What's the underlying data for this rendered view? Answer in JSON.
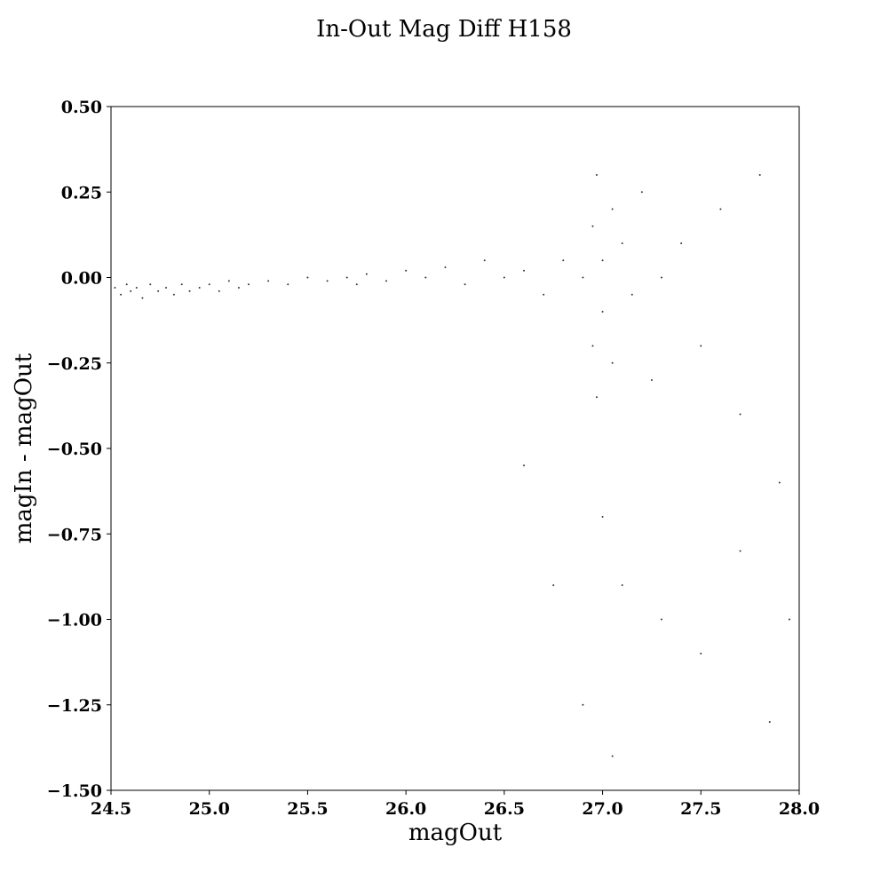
{
  "chart_data": {
    "type": "scatter",
    "title": "In-Out Mag Diff H158",
    "xlabel": "magOut",
    "ylabel": "magIn - magOut",
    "xlim": [
      24.5,
      28.0
    ],
    "ylim": [
      -1.5,
      0.5
    ],
    "xticks": [
      24.5,
      25.0,
      25.5,
      26.0,
      26.5,
      27.0,
      27.5,
      28.0
    ],
    "xtick_labels": [
      "24.5",
      "25.0",
      "25.5",
      "26.0",
      "26.5",
      "27.0",
      "27.5",
      "28.0"
    ],
    "yticks": [
      0.5,
      0.25,
      0.0,
      -0.25,
      -0.5,
      -0.75,
      -1.0,
      -1.25,
      -1.5
    ],
    "ytick_labels": [
      "0.50",
      "0.25",
      "0.00",
      "−0.25",
      "−0.50",
      "−0.75",
      "−1.00",
      "−1.25",
      "−1.50"
    ],
    "grid": false,
    "marker_color": "#000000",
    "series": [
      {
        "points": [
          [
            24.52,
            -0.03
          ],
          [
            24.55,
            -0.05
          ],
          [
            24.58,
            -0.02
          ],
          [
            24.6,
            -0.04
          ],
          [
            24.63,
            -0.03
          ],
          [
            24.66,
            -0.06
          ],
          [
            24.7,
            -0.02
          ],
          [
            24.74,
            -0.04
          ],
          [
            24.78,
            -0.03
          ],
          [
            24.82,
            -0.05
          ],
          [
            24.86,
            -0.02
          ],
          [
            24.9,
            -0.04
          ],
          [
            24.95,
            -0.03
          ],
          [
            25.0,
            -0.02
          ],
          [
            25.05,
            -0.04
          ],
          [
            25.1,
            -0.01
          ],
          [
            25.15,
            -0.03
          ],
          [
            25.2,
            -0.02
          ],
          [
            25.3,
            -0.01
          ],
          [
            25.4,
            -0.02
          ],
          [
            25.5,
            0.0
          ],
          [
            25.6,
            -0.01
          ],
          [
            25.7,
            0.0
          ],
          [
            25.75,
            -0.02
          ],
          [
            25.8,
            0.01
          ],
          [
            25.9,
            -0.01
          ],
          [
            26.0,
            0.02
          ],
          [
            26.1,
            0.0
          ],
          [
            26.2,
            0.03
          ],
          [
            26.3,
            -0.02
          ],
          [
            26.4,
            0.05
          ],
          [
            26.5,
            0.0
          ],
          [
            26.6,
            0.02
          ],
          [
            26.7,
            -0.05
          ],
          [
            26.8,
            0.05
          ],
          [
            26.9,
            0.0
          ],
          [
            26.95,
            0.15
          ],
          [
            26.95,
            -0.2
          ],
          [
            26.97,
            0.3
          ],
          [
            26.97,
            -0.35
          ],
          [
            27.0,
            0.05
          ],
          [
            27.0,
            -0.1
          ],
          [
            27.05,
            0.2
          ],
          [
            27.05,
            -0.25
          ],
          [
            27.1,
            0.1
          ],
          [
            27.15,
            -0.05
          ],
          [
            27.2,
            0.25
          ],
          [
            27.25,
            -0.3
          ],
          [
            27.3,
            0.0
          ],
          [
            27.4,
            0.1
          ],
          [
            27.5,
            -0.2
          ],
          [
            27.6,
            0.2
          ],
          [
            27.7,
            -0.4
          ],
          [
            27.8,
            0.3
          ],
          [
            27.9,
            -0.6
          ],
          [
            27.0,
            -0.7
          ],
          [
            27.1,
            -0.9
          ],
          [
            27.3,
            -1.0
          ],
          [
            27.5,
            -1.1
          ],
          [
            27.7,
            -0.8
          ],
          [
            27.85,
            -1.3
          ],
          [
            27.05,
            -1.4
          ],
          [
            26.9,
            -1.25
          ],
          [
            26.75,
            -0.9
          ],
          [
            26.6,
            -0.55
          ],
          [
            27.95,
            -1.0
          ]
        ]
      }
    ]
  }
}
